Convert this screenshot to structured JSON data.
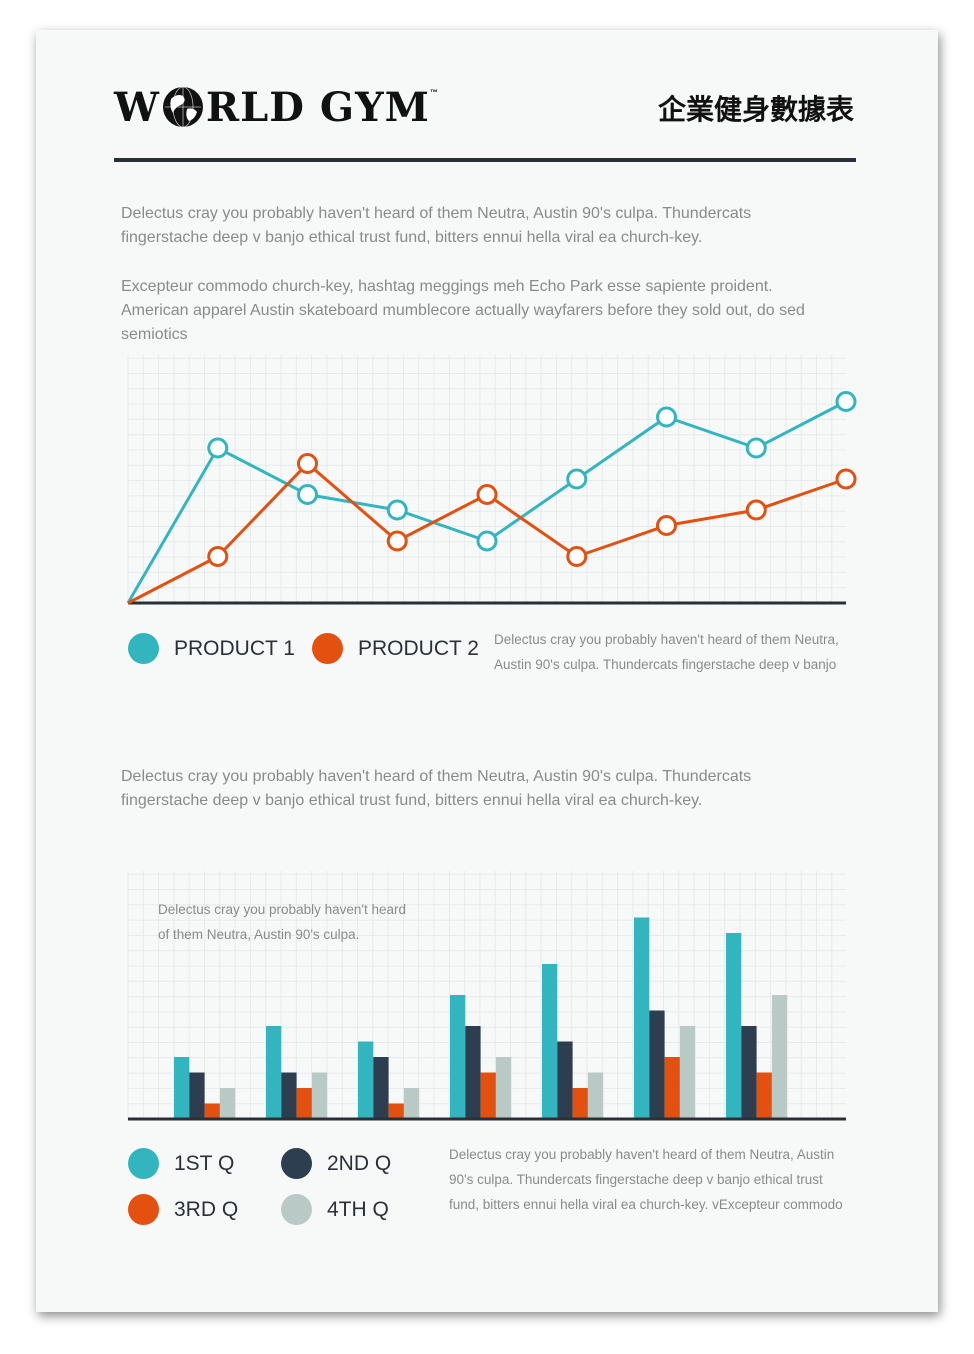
{
  "header": {
    "brand": "WORLD GYM",
    "title": "企業健身數據表"
  },
  "intro": {
    "para1": "Delectus cray you probably haven't heard of them Neutra, Austin 90's culpa. Thundercats fingerstache deep v banjo ethical trust fund, bitters ennui hella viral ea church-key.",
    "para2": "Excepteur commodo church-key, hashtag meggings meh Echo Park esse sapiente proident. American apparel Austin skateboard mumblecore actually wayfarers before they sold out, do sed semiotics"
  },
  "line_section": {
    "legend": [
      {
        "label": "PRODUCT 1",
        "color": "#33b5c0"
      },
      {
        "label": "PRODUCT 2",
        "color": "#e4500f"
      }
    ],
    "note": "Delectus cray you probably haven't heard of them Neutra, Austin 90's culpa. Thundercats fingerstache deep v banjo"
  },
  "bar_section": {
    "para": "Delectus cray you probably haven't heard of them Neutra, Austin 90's culpa. Thundercats fingerstache deep v banjo ethical trust fund, bitters ennui hella viral ea church-key.",
    "chart_note": "Delectus cray you probably haven't heard of them Neutra, Austin 90's culpa.",
    "legend": [
      {
        "label": "1ST Q",
        "color": "#33b5c0"
      },
      {
        "label": "2ND Q",
        "color": "#2c3e50"
      },
      {
        "label": "3RD Q",
        "color": "#e4500f"
      },
      {
        "label": "4TH Q",
        "color": "#b9c9c5"
      }
    ],
    "note": "Delectus cray you probably haven't heard of them Neutra, Austin 90's culpa. Thundercats fingerstache deep v banjo ethical trust fund, bitters ennui hella viral ea church-key.  vExcepteur commodo"
  },
  "chart_data": [
    {
      "type": "line",
      "x": [
        0,
        1,
        2,
        3,
        4,
        5,
        6,
        7,
        8
      ],
      "ylim": [
        0,
        16
      ],
      "grid": true,
      "series": [
        {
          "name": "PRODUCT 1",
          "color": "#33b5c0",
          "values": [
            0,
            10,
            7,
            6,
            4,
            8,
            12,
            10,
            13
          ]
        },
        {
          "name": "PRODUCT 2",
          "color": "#e4500f",
          "values": [
            0,
            3,
            9,
            4,
            7,
            3,
            5,
            6,
            8
          ]
        }
      ]
    },
    {
      "type": "bar",
      "categories": [
        "1",
        "2",
        "3",
        "4",
        "5",
        "6",
        "7"
      ],
      "ylim": [
        0,
        16
      ],
      "grid": true,
      "series": [
        {
          "name": "1ST Q",
          "color": "#33b5c0",
          "values": [
            4,
            6,
            5,
            8,
            10,
            13,
            12
          ]
        },
        {
          "name": "2ND Q",
          "color": "#2c3e50",
          "values": [
            3,
            3,
            4,
            6,
            5,
            7,
            6
          ]
        },
        {
          "name": "3RD Q",
          "color": "#e4500f",
          "values": [
            1,
            2,
            1,
            3,
            2,
            4,
            3
          ]
        },
        {
          "name": "4TH Q",
          "color": "#b9c9c5",
          "values": [
            2,
            3,
            2,
            4,
            3,
            6,
            8
          ]
        }
      ]
    }
  ]
}
